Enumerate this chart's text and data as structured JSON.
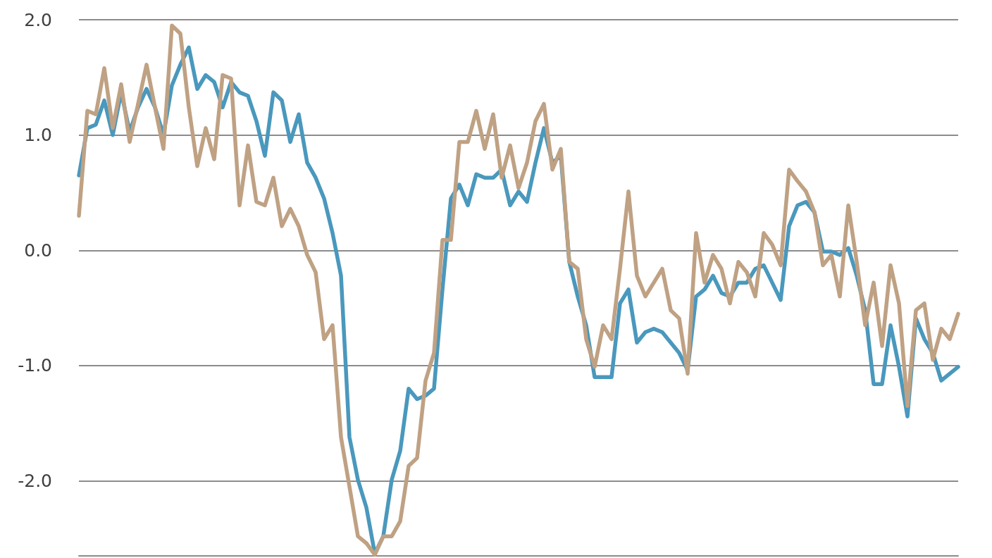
{
  "chart_data": {
    "type": "line",
    "categories": [
      null,
      null,
      null,
      null,
      null,
      null,
      null,
      null,
      null,
      null,
      null,
      null,
      null,
      null,
      null,
      null,
      null,
      null,
      null,
      null,
      null,
      null,
      null,
      null,
      null,
      null,
      null,
      null,
      null,
      null,
      null,
      null,
      null,
      null,
      null,
      null,
      null,
      null,
      null,
      null,
      null,
      null,
      null,
      null,
      null,
      null,
      null,
      null,
      null,
      null,
      null,
      null,
      null,
      null,
      null,
      null,
      null,
      null,
      null,
      null,
      null,
      null,
      null,
      null,
      null,
      null,
      null,
      null,
      null,
      null,
      null,
      null,
      null,
      null,
      null,
      null,
      null,
      null,
      null,
      null,
      null,
      null,
      null,
      null,
      null,
      null,
      null,
      null,
      null,
      null,
      null,
      null,
      null,
      null,
      null,
      null,
      null,
      null,
      null,
      null,
      null,
      null,
      null,
      null,
      null
    ],
    "series": [
      {
        "color": "#4a98bd",
        "values": [
          0.65,
          1.06,
          1.09,
          1.3,
          1.0,
          1.37,
          1.03,
          1.24,
          1.4,
          1.24,
          1.0,
          1.43,
          1.61,
          1.76,
          1.4,
          1.52,
          1.46,
          1.24,
          1.46,
          1.37,
          1.34,
          1.12,
          0.82,
          1.37,
          1.3,
          0.94,
          1.18,
          0.76,
          0.63,
          0.45,
          0.15,
          -0.22,
          -1.62,
          -1.99,
          -2.23,
          -2.63,
          -2.48,
          -1.99,
          -1.74,
          -1.2,
          -1.29,
          -1.26,
          -1.2,
          -0.34,
          0.45,
          0.57,
          0.39,
          0.66,
          0.63,
          0.63,
          0.7,
          0.39,
          0.51,
          0.42,
          0.76,
          1.06,
          0.76,
          0.82,
          -0.1,
          -0.4,
          -0.65,
          -1.1,
          -1.1,
          -1.1,
          -0.46,
          -0.34,
          -0.8,
          -0.71,
          -0.68,
          -0.71,
          -0.8,
          -0.89,
          -1.04,
          -0.4,
          -0.34,
          -0.22,
          -0.37,
          -0.4,
          -0.28,
          -0.28,
          -0.16,
          -0.13,
          -0.28,
          -0.43,
          0.21,
          0.39,
          0.42,
          0.33,
          -0.01,
          -0.01,
          -0.04,
          0.02,
          -0.22,
          -0.52,
          -1.16,
          -1.16,
          -0.65,
          -1.01,
          -1.44,
          -0.59,
          -0.77,
          -0.89,
          -1.13,
          -1.07,
          -1.01
        ]
      },
      {
        "color": "#bfa183",
        "values": [
          0.3,
          1.21,
          1.18,
          1.58,
          1.06,
          1.44,
          0.94,
          1.27,
          1.61,
          1.24,
          0.88,
          1.95,
          1.88,
          1.24,
          0.73,
          1.06,
          0.79,
          1.52,
          1.49,
          0.39,
          0.91,
          0.42,
          0.39,
          0.63,
          0.21,
          0.36,
          0.21,
          -0.04,
          -0.19,
          -0.77,
          -0.65,
          -1.62,
          -2.05,
          -2.48,
          -2.54,
          -2.64,
          -2.48,
          -2.48,
          -2.35,
          -1.87,
          -1.8,
          -1.13,
          -0.89,
          0.09,
          0.09,
          0.94,
          0.94,
          1.21,
          0.88,
          1.18,
          0.63,
          0.91,
          0.54,
          0.76,
          1.12,
          1.27,
          0.7,
          0.88,
          -0.1,
          -0.16,
          -0.77,
          -1.01,
          -0.65,
          -0.77,
          -0.16,
          0.51,
          -0.22,
          -0.4,
          -0.28,
          -0.16,
          -0.52,
          -0.59,
          -1.07,
          0.15,
          -0.28,
          -0.04,
          -0.16,
          -0.46,
          -0.1,
          -0.19,
          -0.4,
          0.15,
          0.05,
          -0.13,
          0.7,
          0.6,
          0.51,
          0.33,
          -0.13,
          -0.04,
          -0.4,
          0.39,
          -0.1,
          -0.65,
          -0.28,
          -0.83,
          -0.13,
          -0.46,
          -1.35,
          -0.52,
          -0.46,
          -0.95,
          -0.68,
          -0.77,
          -0.55
        ]
      }
    ],
    "ylim": [
      -2.65,
      2.0
    ],
    "yticks": [
      {
        "value": 2,
        "label": "2.0"
      },
      {
        "value": 1,
        "label": "1.0"
      },
      {
        "value": 0,
        "label": "0.0"
      },
      {
        "value": -1,
        "label": "-1.0"
      },
      {
        "value": -2,
        "label": "-2.0"
      }
    ],
    "grid": "y",
    "tick_labels": "y",
    "marker": "none",
    "line_style": "solid"
  }
}
